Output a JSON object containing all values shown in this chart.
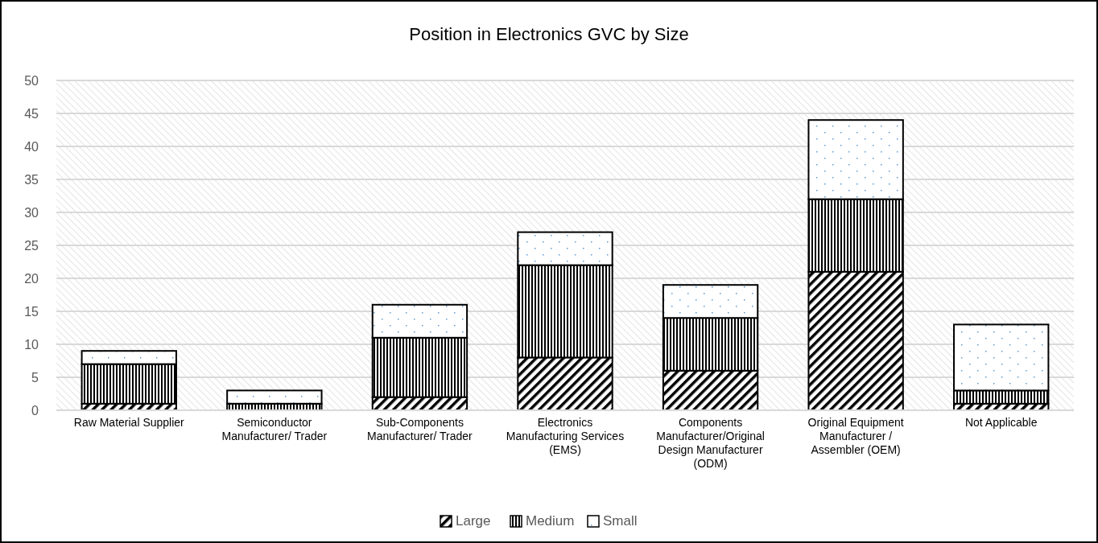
{
  "chart_data": {
    "type": "bar",
    "title": "Position in Electronics GVC by Size",
    "stacked": true,
    "categories": [
      "Raw Material  Supplier",
      "Semiconductor Manufacturer/ Trader",
      "Sub-Components Manufacturer/ Trader",
      "Electronics Manufacturing Services (EMS)",
      "Components Manufacturer/Original Design Manufacturer (ODM)",
      "Original Equipment Manufacturer / Assembler (OEM)",
      "Not Applicable"
    ],
    "series": [
      {
        "name": "Large",
        "color": "#000000",
        "values": [
          1,
          0,
          2,
          8,
          6,
          21,
          1
        ]
      },
      {
        "name": "Medium",
        "color": "#000000",
        "values": [
          6,
          1,
          9,
          14,
          8,
          11,
          2
        ]
      },
      {
        "name": "Small",
        "color": "#000000",
        "values": [
          2,
          2,
          5,
          5,
          5,
          12,
          10
        ]
      }
    ],
    "ylim": [
      0,
      50
    ],
    "yticks": [
      0,
      5,
      10,
      15,
      20,
      25,
      30,
      35,
      40,
      45,
      50
    ],
    "grid": "y",
    "legend": "bottom"
  }
}
